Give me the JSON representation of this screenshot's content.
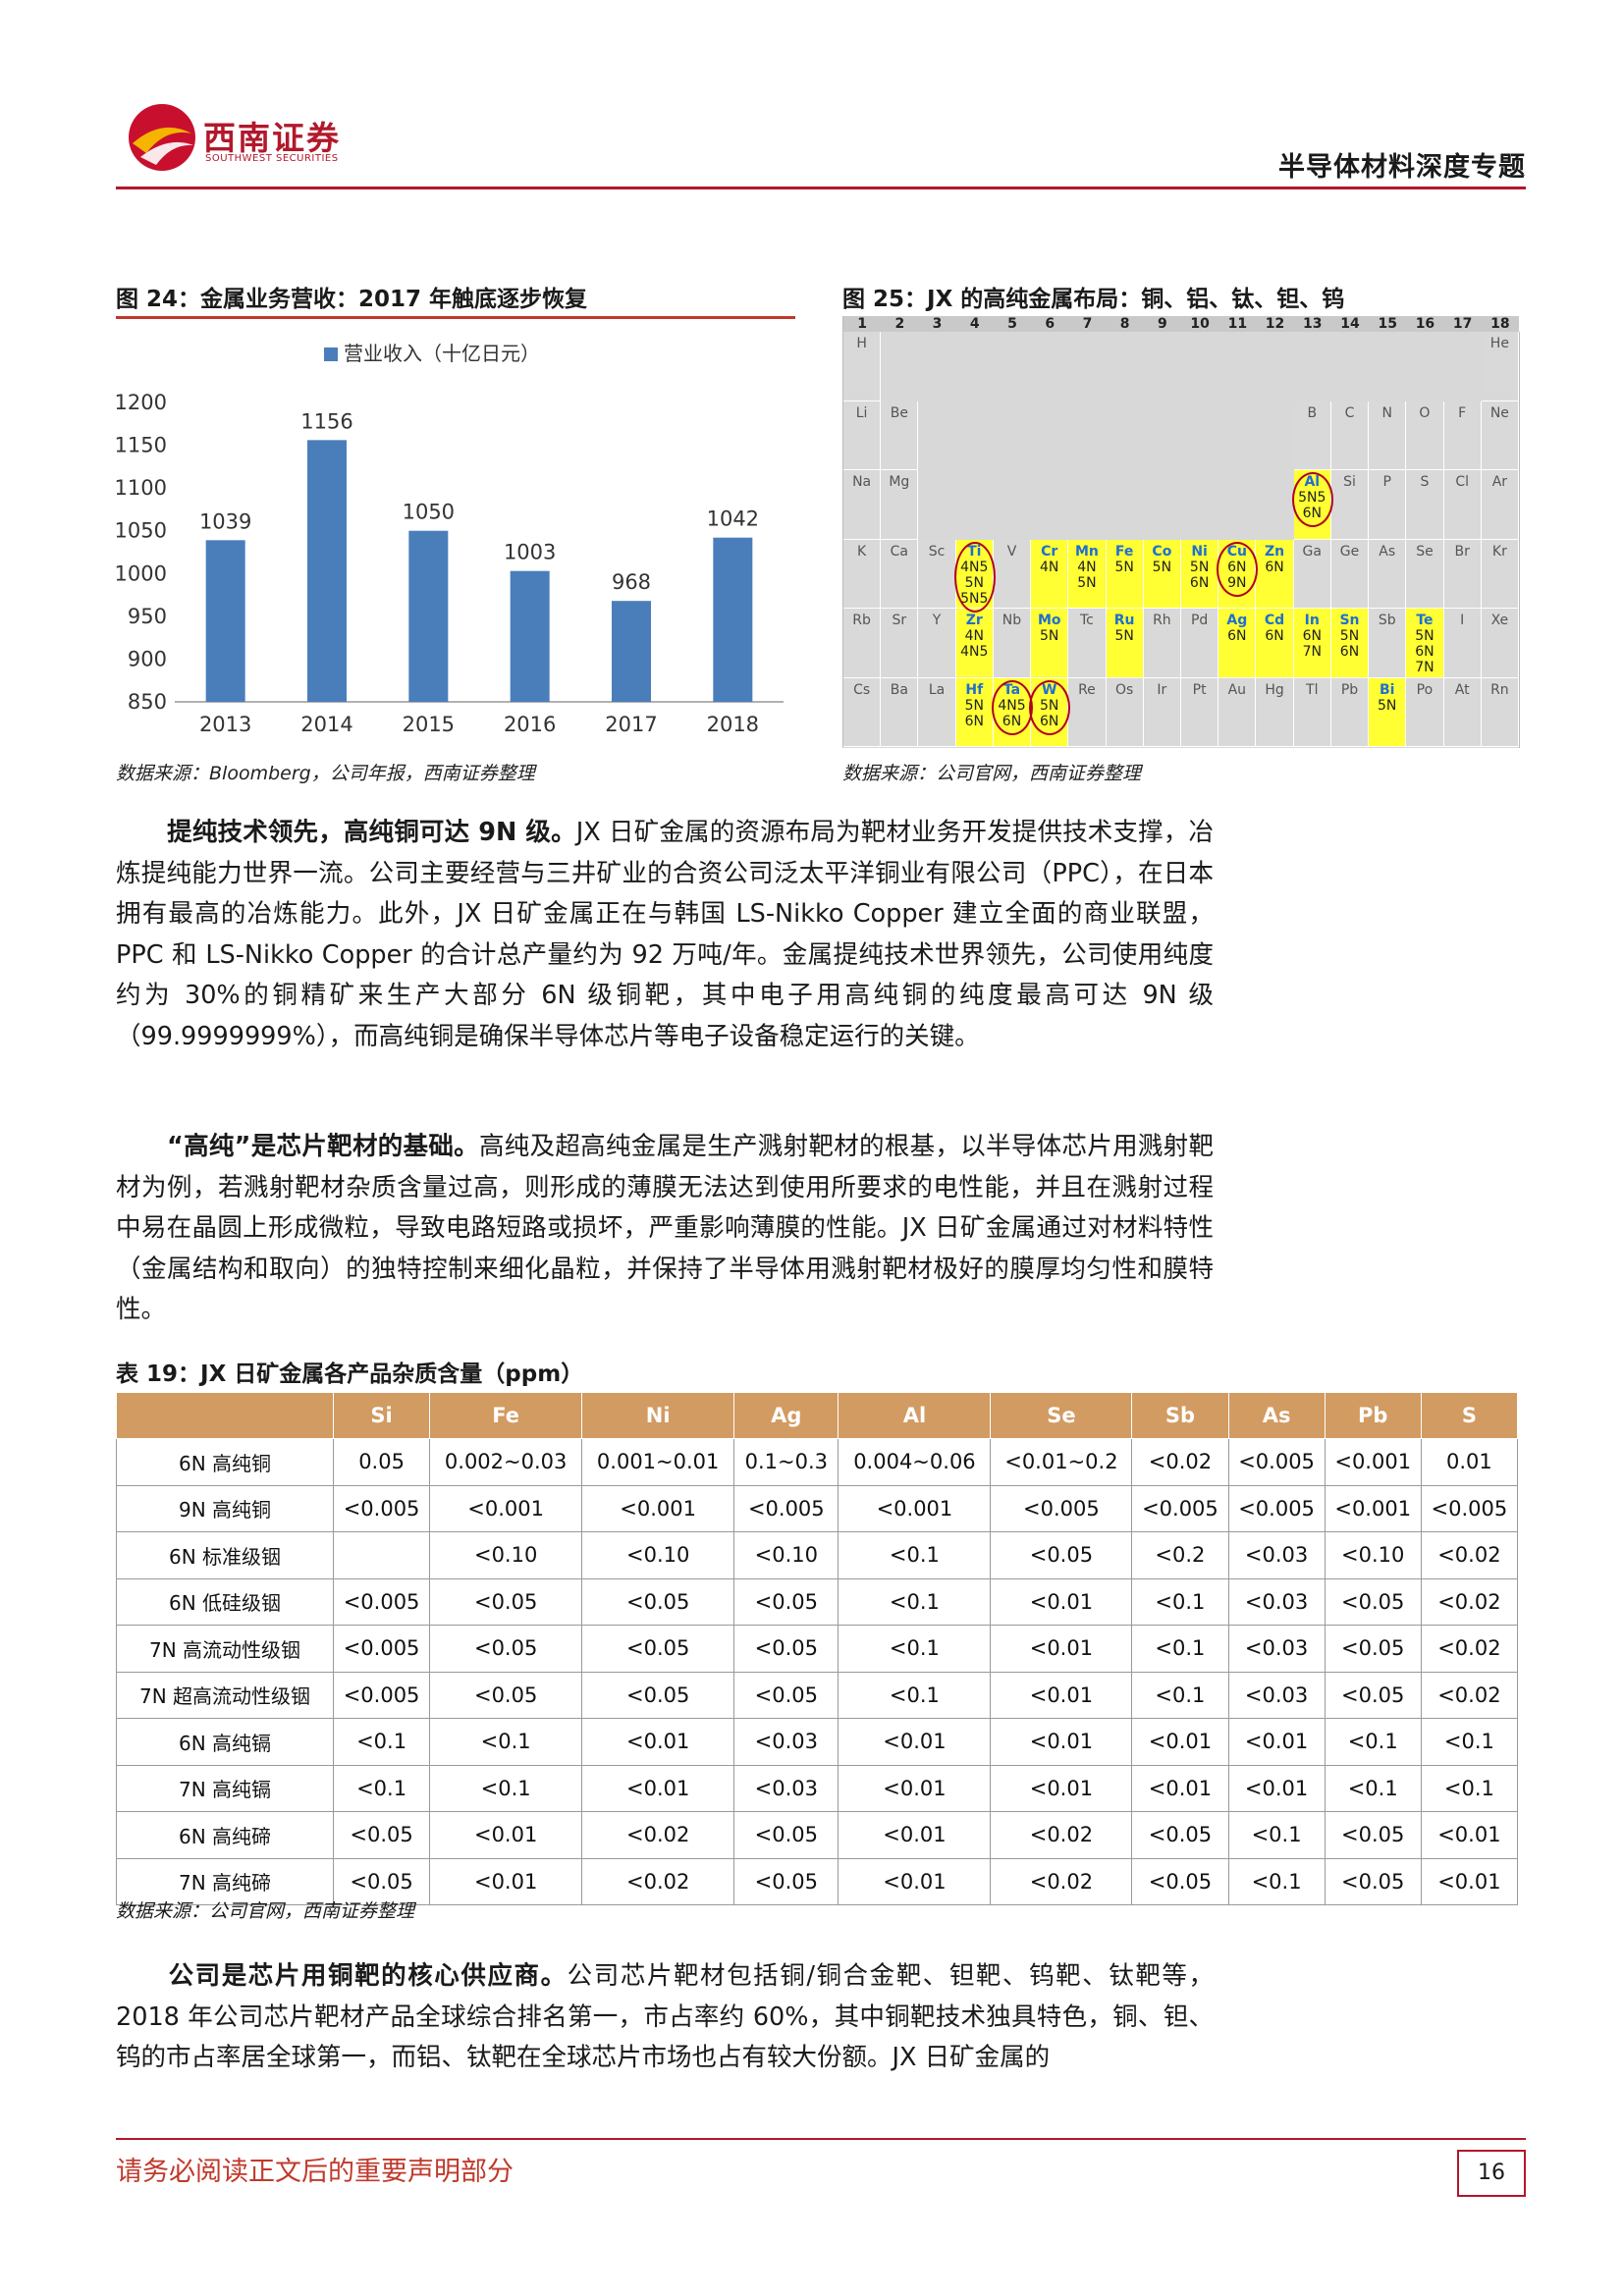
{
  "header": {
    "logo_text": "西南证券",
    "logo_subtext": "SOUTHWEST SECURITIES",
    "report_title": "半导体材料深度专题"
  },
  "fig24": {
    "caption": "图 24：金属业务营收：2017 年触底逐步恢复",
    "source": "数据来源：Bloomberg，公司年报，西南证券整理"
  },
  "fig25": {
    "caption": "图 25：JX 的高纯金属布局：铜、铝、钛、钽、钨",
    "source": "数据来源：公司官网，西南证券整理"
  },
  "chart_data": {
    "type": "bar",
    "legend": "营业收入（十亿日元）",
    "categories": [
      "2013",
      "2014",
      "2015",
      "2016",
      "2017",
      "2018"
    ],
    "values": [
      1039,
      1156,
      1050,
      1003,
      968,
      1042
    ],
    "ylim": [
      850,
      1200
    ],
    "yticks": [
      850,
      900,
      950,
      1000,
      1050,
      1100,
      1150,
      1200
    ],
    "color": "#4a7ebb",
    "grid": false
  },
  "periodic": {
    "groups": [
      "1",
      "2",
      "3",
      "4",
      "5",
      "6",
      "7",
      "8",
      "9",
      "10",
      "11",
      "12",
      "13",
      "14",
      "15",
      "16",
      "17",
      "18"
    ],
    "rows": [
      [
        [
          "H",
          ""
        ],
        null,
        null,
        null,
        null,
        null,
        null,
        null,
        null,
        null,
        null,
        null,
        null,
        null,
        null,
        null,
        null,
        [
          "He",
          ""
        ]
      ],
      [
        [
          "Li",
          ""
        ],
        [
          "Be",
          ""
        ],
        null,
        null,
        null,
        null,
        null,
        null,
        null,
        null,
        null,
        null,
        [
          "B",
          ""
        ],
        [
          "C",
          ""
        ],
        [
          "N",
          ""
        ],
        [
          "O",
          ""
        ],
        [
          "F",
          ""
        ],
        [
          "Ne",
          ""
        ]
      ],
      [
        [
          "Na",
          ""
        ],
        [
          "Mg",
          ""
        ],
        null,
        null,
        null,
        null,
        null,
        null,
        null,
        null,
        null,
        null,
        [
          "Al",
          "5N5\n6N"
        ],
        [
          "Si",
          ""
        ],
        [
          "P",
          ""
        ],
        [
          "S",
          ""
        ],
        [
          "Cl",
          ""
        ],
        [
          "Ar",
          ""
        ]
      ],
      [
        [
          "K",
          ""
        ],
        [
          "Ca",
          ""
        ],
        [
          "Sc",
          ""
        ],
        [
          "Ti",
          "4N5\n5N\n5N5"
        ],
        [
          "V",
          ""
        ],
        [
          "Cr",
          "4N"
        ],
        [
          "Mn",
          "4N\n5N"
        ],
        [
          "Fe",
          "5N"
        ],
        [
          "Co",
          "5N"
        ],
        [
          "Ni",
          "5N\n6N"
        ],
        [
          "Cu",
          "6N\n9N"
        ],
        [
          "Zn",
          "6N"
        ],
        [
          "Ga",
          ""
        ],
        [
          "Ge",
          ""
        ],
        [
          "As",
          ""
        ],
        [
          "Se",
          ""
        ],
        [
          "Br",
          ""
        ],
        [
          "Kr",
          ""
        ]
      ],
      [
        [
          "Rb",
          ""
        ],
        [
          "Sr",
          ""
        ],
        [
          "Y",
          ""
        ],
        [
          "Zr",
          "4N\n4N5"
        ],
        [
          "Nb",
          ""
        ],
        [
          "Mo",
          "5N"
        ],
        [
          "Tc",
          ""
        ],
        [
          "Ru",
          "5N"
        ],
        [
          "Rh",
          ""
        ],
        [
          "Pd",
          ""
        ],
        [
          "Ag",
          "6N"
        ],
        [
          "Cd",
          "6N"
        ],
        [
          "In",
          "6N\n7N"
        ],
        [
          "Sn",
          "5N\n6N"
        ],
        [
          "Sb",
          ""
        ],
        [
          "Te",
          "5N\n6N\n7N"
        ],
        [
          "I",
          ""
        ],
        [
          "Xe",
          ""
        ]
      ],
      [
        [
          "Cs",
          ""
        ],
        [
          "Ba",
          ""
        ],
        [
          "La",
          ""
        ],
        [
          "Hf",
          "5N\n6N"
        ],
        [
          "Ta",
          "4N5\n6N"
        ],
        [
          "W",
          "5N\n6N"
        ],
        [
          "Re",
          ""
        ],
        [
          "Os",
          ""
        ],
        [
          "Ir",
          ""
        ],
        [
          "Pt",
          ""
        ],
        [
          "Au",
          ""
        ],
        [
          "Hg",
          ""
        ],
        [
          "Tl",
          ""
        ],
        [
          "Pb",
          ""
        ],
        [
          "Bi",
          "5N"
        ],
        [
          "Po",
          ""
        ],
        [
          "At",
          ""
        ],
        [
          "Rn",
          ""
        ]
      ]
    ],
    "circled": [
      "Ti",
      "Al",
      "Cu",
      "Ta",
      "W"
    ]
  },
  "para1": {
    "lead": "提纯技术领先，高纯铜可达 9N 级。",
    "text": "JX 日矿金属的资源布局为靶材业务开发提供技术支撑，冶炼提纯能力世界一流。公司主要经营与三井矿业的合资公司泛太平洋铜业有限公司（PPC），在日本拥有最高的冶炼能力。此外，JX 日矿金属正在与韩国 LS-Nikko Copper 建立全面的商业联盟，PPC 和 LS-Nikko Copper 的合计总产量约为 92 万吨/年。金属提纯技术世界领先，公司使用纯度约为 30%的铜精矿来生产大部分 6N 级铜靶，其中电子用高纯铜的纯度最高可达 9N 级（99.9999999%），而高纯铜是确保半导体芯片等电子设备稳定运行的关键。"
  },
  "para2": {
    "lead": "“高纯”是芯片靶材的基础。",
    "text": "高纯及超高纯金属是生产溅射靶材的根基，以半导体芯片用溅射靶材为例，若溅射靶材杂质含量过高，则形成的薄膜无法达到使用所要求的电性能，并且在溅射过程中易在晶圆上形成微粒，导致电路短路或损坏，严重影响薄膜的性能。JX 日矿金属通过对材料特性（金属结构和取向）的独特控制来细化晶粒，并保持了半导体用溅射靶材极好的膜厚均匀性和膜特性。"
  },
  "table": {
    "caption": "表 19：JX 日矿金属各产品杂质含量（ppm）",
    "headers": [
      "",
      "Si",
      "Fe",
      "Ni",
      "Ag",
      "Al",
      "Se",
      "Sb",
      "As",
      "Pb",
      "S"
    ],
    "rows": [
      [
        "6N 高纯铜",
        "0.05",
        "0.002~0.03",
        "0.001~0.01",
        "0.1~0.3",
        "0.004~0.06",
        "<0.01~0.2",
        "<0.02",
        "<0.005",
        "<0.001",
        "0.01"
      ],
      [
        "9N 高纯铜",
        "<0.005",
        "<0.001",
        "<0.001",
        "<0.005",
        "<0.001",
        "<0.005",
        "<0.005",
        "<0.005",
        "<0.001",
        "<0.005"
      ],
      [
        "6N 标准级铟",
        "",
        "<0.10",
        "<0.10",
        "<0.10",
        "<0.1",
        "<0.05",
        "<0.2",
        "<0.03",
        "<0.10",
        "<0.02"
      ],
      [
        "6N 低硅级铟",
        "<0.005",
        "<0.05",
        "<0.05",
        "<0.05",
        "<0.1",
        "<0.01",
        "<0.1",
        "<0.03",
        "<0.05",
        "<0.02"
      ],
      [
        "7N 高流动性级铟",
        "<0.005",
        "<0.05",
        "<0.05",
        "<0.05",
        "<0.1",
        "<0.01",
        "<0.1",
        "<0.03",
        "<0.05",
        "<0.02"
      ],
      [
        "7N 超高流动性级铟",
        "<0.005",
        "<0.05",
        "<0.05",
        "<0.05",
        "<0.1",
        "<0.01",
        "<0.1",
        "<0.03",
        "<0.05",
        "<0.02"
      ],
      [
        "6N 高纯镉",
        "<0.1",
        "<0.1",
        "<0.01",
        "<0.03",
        "<0.01",
        "<0.01",
        "<0.01",
        "<0.01",
        "<0.1",
        "<0.1"
      ],
      [
        "7N 高纯镉",
        "<0.1",
        "<0.1",
        "<0.01",
        "<0.03",
        "<0.01",
        "<0.01",
        "<0.01",
        "<0.01",
        "<0.1",
        "<0.1"
      ],
      [
        "6N 高纯碲",
        "<0.05",
        "<0.01",
        "<0.02",
        "<0.05",
        "<0.01",
        "<0.02",
        "<0.05",
        "<0.1",
        "<0.05",
        "<0.01"
      ],
      [
        "7N 高纯碲",
        "<0.05",
        "<0.01",
        "<0.02",
        "<0.05",
        "<0.01",
        "<0.02",
        "<0.05",
        "<0.1",
        "<0.05",
        "<0.01"
      ]
    ],
    "source": "数据来源：公司官网，西南证券整理"
  },
  "para3": {
    "lead": "公司是芯片用铜靶的核心供应商。",
    "text": "公司芯片靶材包括铜/铜合金靶、钽靶、钨靶、钛靶等，2018 年公司芯片靶材产品全球综合排名第一，市占率约 60%，其中铜靶技术独具特色，铜、钽、钨的市占率居全球第一，而铝、钛靶在全球芯片市场也占有较大份额。JX 日矿金属的"
  },
  "footer": {
    "notice": "请务必阅读正文后的重要声明部分",
    "page": "16"
  }
}
